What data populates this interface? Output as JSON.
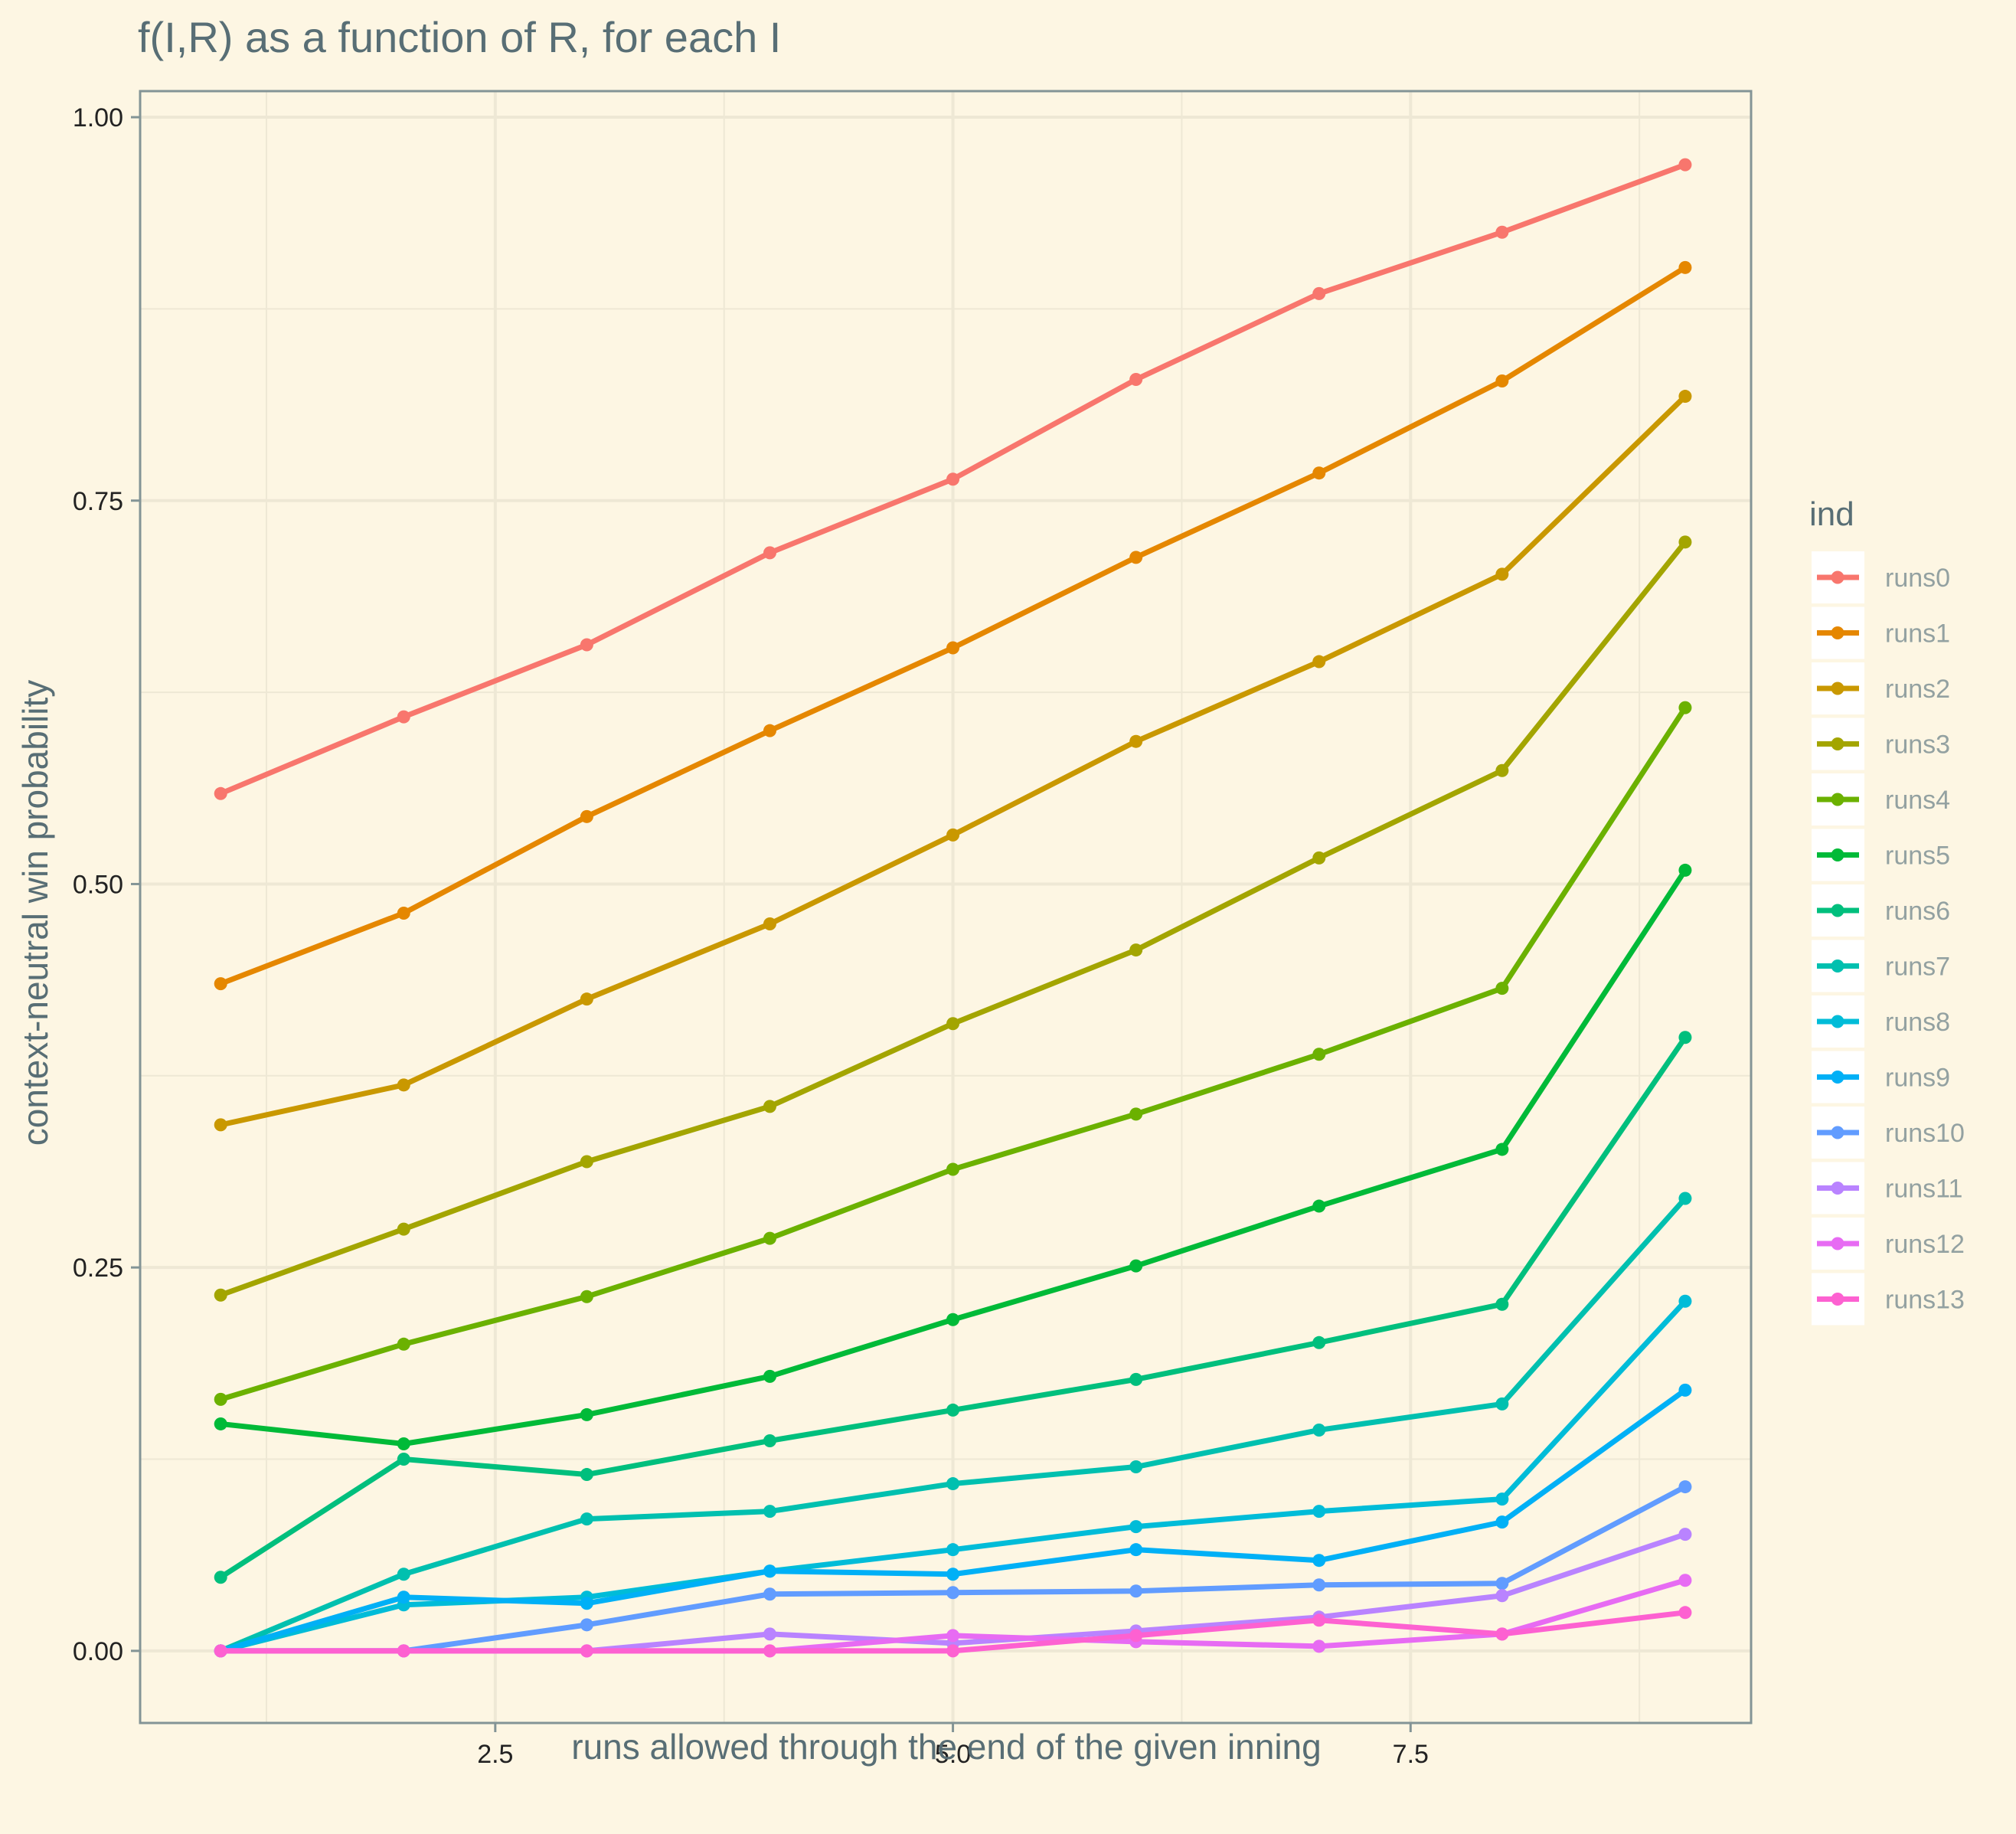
{
  "chart_data": {
    "type": "line",
    "title": "f(I,R) as a function of R, for each I",
    "xlabel": "runs allowed through the end of the given inning",
    "ylabel": "context-neutral win probability",
    "xlim": [
      0.56,
      9.36
    ],
    "ylim": [
      -0.047,
      1.017
    ],
    "x_ticks": [
      2.5,
      5.0,
      7.5
    ],
    "x_tick_labels": [
      "2.5",
      "5.0",
      "7.5"
    ],
    "y_ticks": [
      0,
      0.25,
      0.5,
      0.75,
      1.0
    ],
    "y_tick_labels": [
      "0.00",
      "0.25",
      "0.50",
      "0.75",
      "1.00"
    ],
    "x_minor": [
      1.25,
      3.75,
      6.25,
      8.75
    ],
    "y_minor": [
      0.125,
      0.375,
      0.625,
      0.875
    ],
    "grid": true,
    "legend_title": "ind",
    "legend_position": "right",
    "x": [
      1,
      2,
      3,
      4,
      5,
      6,
      7,
      8,
      9
    ],
    "series": [
      {
        "name": "runs0",
        "color": "#f8766d",
        "values": [
          0.559,
          0.609,
          0.656,
          0.716,
          0.764,
          0.829,
          0.885,
          0.925,
          0.969
        ]
      },
      {
        "name": "runs1",
        "color": "#e58700",
        "values": [
          0.435,
          0.481,
          0.544,
          0.6,
          0.654,
          0.713,
          0.768,
          0.828,
          0.902
        ]
      },
      {
        "name": "runs2",
        "color": "#c99800",
        "values": [
          0.343,
          0.369,
          0.425,
          0.474,
          0.532,
          0.593,
          0.645,
          0.702,
          0.818
        ]
      },
      {
        "name": "runs3",
        "color": "#a3a500",
        "values": [
          0.232,
          0.275,
          0.319,
          0.355,
          0.409,
          0.457,
          0.517,
          0.574,
          0.723
        ]
      },
      {
        "name": "runs4",
        "color": "#6bb100",
        "values": [
          0.164,
          0.2,
          0.231,
          0.269,
          0.314,
          0.35,
          0.389,
          0.432,
          0.615
        ]
      },
      {
        "name": "runs5",
        "color": "#00ba38",
        "values": [
          0.148,
          0.135,
          0.154,
          0.179,
          0.216,
          0.251,
          0.29,
          0.327,
          0.509
        ]
      },
      {
        "name": "runs6",
        "color": "#00bf7d",
        "values": [
          0.048,
          0.125,
          0.115,
          0.137,
          0.157,
          0.177,
          0.201,
          0.226,
          0.4
        ]
      },
      {
        "name": "runs7",
        "color": "#00c0af",
        "values": [
          0.0,
          0.05,
          0.086,
          0.091,
          0.109,
          0.12,
          0.144,
          0.161,
          0.295
        ]
      },
      {
        "name": "runs8",
        "color": "#00bcd8",
        "values": [
          0.0,
          0.03,
          0.035,
          0.052,
          0.066,
          0.081,
          0.091,
          0.099,
          0.228
        ]
      },
      {
        "name": "runs9",
        "color": "#00b0f6",
        "values": [
          0.0,
          0.035,
          0.031,
          0.052,
          0.05,
          0.066,
          0.059,
          0.084,
          0.17
        ]
      },
      {
        "name": "runs10",
        "color": "#619cff",
        "values": [
          0.0,
          0.0,
          0.017,
          0.037,
          0.038,
          0.039,
          0.043,
          0.044,
          0.107
        ]
      },
      {
        "name": "runs11",
        "color": "#b983ff",
        "values": [
          0.0,
          0.0,
          0.0,
          0.011,
          0.005,
          0.013,
          0.022,
          0.036,
          0.076
        ]
      },
      {
        "name": "runs12",
        "color": "#e76bf3",
        "values": [
          0.0,
          0.0,
          0.0,
          0.0,
          0.01,
          0.006,
          0.003,
          0.011,
          0.046
        ]
      },
      {
        "name": "runs13",
        "color": "#fd61d1",
        "values": [
          0.0,
          0.0,
          0.0,
          0.0,
          0.0,
          0.01,
          0.02,
          0.011,
          0.025
        ]
      }
    ]
  }
}
